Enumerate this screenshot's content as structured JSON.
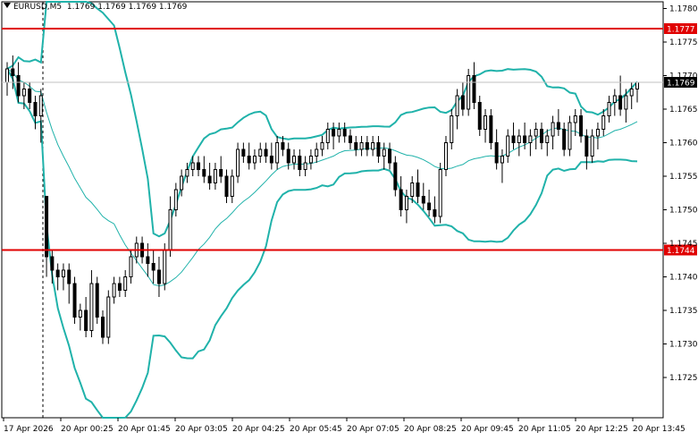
{
  "header": {
    "symbol_timeframe": "EURUSD,M5",
    "quote_values": "1.1769 1.1769 1.1769 1.1769"
  },
  "chart_data": {
    "type": "candlestick",
    "ylim": [
      1.1719,
      1.1781
    ],
    "y_ticks": [
      "1.1780",
      "1.1775",
      "1.1770",
      "1.1765",
      "1.1760",
      "1.1755",
      "1.1750",
      "1.1745",
      "1.1740",
      "1.1735",
      "1.1730",
      "1.1725"
    ],
    "x_tick_labels": [
      "17 Apr 2026",
      "20 Apr 00:25",
      "20 Apr 01:45",
      "20 Apr 03:05",
      "20 Apr 04:25",
      "20 Apr 05:45",
      "20 Apr 07:05",
      "20 Apr 08:25",
      "20 Apr 09:45",
      "20 Apr 11:05",
      "20 Apr 12:25",
      "20 Apr 13:45"
    ],
    "horizontal_lines": [
      {
        "price": 1.1777,
        "label": "1.1777",
        "color": "#e00000"
      },
      {
        "price": 1.1744,
        "label": "1.1744",
        "color": "#e00000"
      }
    ],
    "current_price": {
      "price": 1.1769,
      "label": "1.1769"
    },
    "colors": {
      "candle": "#000000",
      "bollinger": "#20b2aa",
      "level": "#e00000",
      "grid": "#c0c0c0"
    },
    "candles": [
      [
        1.1769,
        1.1772,
        1.1767,
        1.1771
      ],
      [
        1.1771,
        1.1773,
        1.1768,
        1.177
      ],
      [
        1.177,
        1.1772,
        1.1766,
        1.1767
      ],
      [
        1.1767,
        1.1769,
        1.1765,
        1.1768
      ],
      [
        1.1768,
        1.1769,
        1.1765,
        1.1766
      ],
      [
        1.1766,
        1.1767,
        1.1762,
        1.1764
      ],
      [
        1.1764,
        1.1768,
        1.176,
        1.1767
      ],
      [
        1.1752,
        1.1752,
        1.174,
        1.1743
      ],
      [
        1.1743,
        1.1744,
        1.1739,
        1.1741
      ],
      [
        1.1741,
        1.1742,
        1.1738,
        1.174
      ],
      [
        1.174,
        1.1742,
        1.1738,
        1.1741
      ],
      [
        1.1741,
        1.1742,
        1.1736,
        1.1739
      ],
      [
        1.1739,
        1.174,
        1.1733,
        1.1734
      ],
      [
        1.1734,
        1.1736,
        1.1732,
        1.1735
      ],
      [
        1.1735,
        1.1737,
        1.1731,
        1.1732
      ],
      [
        1.1732,
        1.1741,
        1.1731,
        1.1739
      ],
      [
        1.1739,
        1.174,
        1.1733,
        1.1734
      ],
      [
        1.1734,
        1.1735,
        1.173,
        1.1731
      ],
      [
        1.1731,
        1.1738,
        1.173,
        1.1737
      ],
      [
        1.1737,
        1.174,
        1.1736,
        1.1739
      ],
      [
        1.1739,
        1.174,
        1.1737,
        1.1738
      ],
      [
        1.1738,
        1.1741,
        1.1737,
        1.174
      ],
      [
        1.174,
        1.1744,
        1.1739,
        1.1743
      ],
      [
        1.1743,
        1.1746,
        1.1742,
        1.1745
      ],
      [
        1.1745,
        1.1746,
        1.1742,
        1.1743
      ],
      [
        1.1743,
        1.1745,
        1.174,
        1.1742
      ],
      [
        1.1742,
        1.1744,
        1.1739,
        1.1741
      ],
      [
        1.1741,
        1.1743,
        1.1737,
        1.1739
      ],
      [
        1.1739,
        1.1745,
        1.1738,
        1.1744
      ],
      [
        1.1744,
        1.1752,
        1.1743,
        1.175
      ],
      [
        1.175,
        1.1754,
        1.1749,
        1.1753
      ],
      [
        1.1753,
        1.1756,
        1.1752,
        1.1755
      ],
      [
        1.1755,
        1.1757,
        1.1754,
        1.1756
      ],
      [
        1.1756,
        1.1758,
        1.1755,
        1.1757
      ],
      [
        1.1757,
        1.1758,
        1.1755,
        1.1756
      ],
      [
        1.1756,
        1.1758,
        1.1754,
        1.1755
      ],
      [
        1.1755,
        1.1757,
        1.1753,
        1.1754
      ],
      [
        1.1754,
        1.1757,
        1.1753,
        1.1756
      ],
      [
        1.1756,
        1.1758,
        1.1754,
        1.1755
      ],
      [
        1.1755,
        1.1756,
        1.1751,
        1.1752
      ],
      [
        1.1752,
        1.1756,
        1.1751,
        1.1755
      ],
      [
        1.1755,
        1.176,
        1.1754,
        1.1759
      ],
      [
        1.1759,
        1.176,
        1.1757,
        1.1758
      ],
      [
        1.1758,
        1.176,
        1.1756,
        1.1757
      ],
      [
        1.1757,
        1.1759,
        1.1756,
        1.1758
      ],
      [
        1.1758,
        1.176,
        1.1757,
        1.1759
      ],
      [
        1.1759,
        1.176,
        1.1757,
        1.1758
      ],
      [
        1.1758,
        1.176,
        1.1756,
        1.1757
      ],
      [
        1.1757,
        1.1761,
        1.1756,
        1.176
      ],
      [
        1.176,
        1.1761,
        1.1758,
        1.1759
      ],
      [
        1.1759,
        1.176,
        1.1756,
        1.1757
      ],
      [
        1.1757,
        1.1759,
        1.1756,
        1.1758
      ],
      [
        1.1758,
        1.1759,
        1.1755,
        1.1756
      ],
      [
        1.1756,
        1.1758,
        1.1755,
        1.1757
      ],
      [
        1.1757,
        1.1759,
        1.1756,
        1.1758
      ],
      [
        1.1758,
        1.176,
        1.1757,
        1.1759
      ],
      [
        1.1759,
        1.1761,
        1.1758,
        1.176
      ],
      [
        1.176,
        1.1763,
        1.1759,
        1.1762
      ],
      [
        1.1762,
        1.1763,
        1.1759,
        1.1761
      ],
      [
        1.1761,
        1.1763,
        1.176,
        1.1762
      ],
      [
        1.1762,
        1.1763,
        1.176,
        1.1761
      ],
      [
        1.1761,
        1.1762,
        1.1759,
        1.176
      ],
      [
        1.176,
        1.1761,
        1.1758,
        1.1759
      ],
      [
        1.1759,
        1.1761,
        1.1758,
        1.176
      ],
      [
        1.176,
        1.1761,
        1.1758,
        1.1759
      ],
      [
        1.1759,
        1.1761,
        1.1758,
        1.176
      ],
      [
        1.176,
        1.1761,
        1.1757,
        1.1758
      ],
      [
        1.1758,
        1.176,
        1.1756,
        1.1759
      ],
      [
        1.1759,
        1.176,
        1.1756,
        1.1757
      ],
      [
        1.1757,
        1.1758,
        1.1752,
        1.1753
      ],
      [
        1.1753,
        1.1755,
        1.1749,
        1.175
      ],
      [
        1.175,
        1.1753,
        1.1748,
        1.1752
      ],
      [
        1.1752,
        1.1755,
        1.1751,
        1.1754
      ],
      [
        1.1754,
        1.1756,
        1.1751,
        1.1752
      ],
      [
        1.1752,
        1.1754,
        1.175,
        1.1751
      ],
      [
        1.1751,
        1.1753,
        1.1749,
        1.175
      ],
      [
        1.175,
        1.1752,
        1.1748,
        1.1749
      ],
      [
        1.1749,
        1.1757,
        1.1748,
        1.1756
      ],
      [
        1.1756,
        1.1761,
        1.1755,
        1.176
      ],
      [
        1.176,
        1.1765,
        1.1759,
        1.1764
      ],
      [
        1.1764,
        1.1768,
        1.1762,
        1.1767
      ],
      [
        1.1767,
        1.1769,
        1.1764,
        1.1765
      ],
      [
        1.1765,
        1.1771,
        1.1764,
        1.177
      ],
      [
        1.177,
        1.1772,
        1.1765,
        1.1766
      ],
      [
        1.1766,
        1.1767,
        1.1761,
        1.1762
      ],
      [
        1.1762,
        1.1765,
        1.176,
        1.1764
      ],
      [
        1.1764,
        1.1765,
        1.1759,
        1.176
      ],
      [
        1.176,
        1.1762,
        1.1756,
        1.1757
      ],
      [
        1.1757,
        1.1759,
        1.1754,
        1.1758
      ],
      [
        1.1758,
        1.1762,
        1.1757,
        1.1761
      ],
      [
        1.1761,
        1.1763,
        1.1759,
        1.176
      ],
      [
        1.176,
        1.1762,
        1.1758,
        1.1761
      ],
      [
        1.1761,
        1.1763,
        1.1759,
        1.176
      ],
      [
        1.176,
        1.1762,
        1.1758,
        1.1761
      ],
      [
        1.1761,
        1.1763,
        1.1759,
        1.1762
      ],
      [
        1.1762,
        1.1763,
        1.1759,
        1.176
      ],
      [
        1.176,
        1.1762,
        1.1758,
        1.1761
      ],
      [
        1.1761,
        1.1764,
        1.1759,
        1.1763
      ],
      [
        1.1763,
        1.1765,
        1.1761,
        1.1762
      ],
      [
        1.1762,
        1.1763,
        1.1758,
        1.1759
      ],
      [
        1.1759,
        1.1764,
        1.1758,
        1.1763
      ],
      [
        1.1763,
        1.1765,
        1.1761,
        1.1764
      ],
      [
        1.1764,
        1.1765,
        1.176,
        1.1761
      ],
      [
        1.1761,
        1.1762,
        1.1756,
        1.1758
      ],
      [
        1.1758,
        1.1762,
        1.1757,
        1.1761
      ],
      [
        1.1761,
        1.1763,
        1.1759,
        1.1762
      ],
      [
        1.1762,
        1.1765,
        1.1761,
        1.1764
      ],
      [
        1.1764,
        1.1767,
        1.1763,
        1.1766
      ],
      [
        1.1766,
        1.1768,
        1.1764,
        1.1767
      ],
      [
        1.1767,
        1.177,
        1.1764,
        1.1765
      ],
      [
        1.1765,
        1.1768,
        1.1763,
        1.1767
      ],
      [
        1.1767,
        1.1769,
        1.1765,
        1.1768
      ],
      [
        1.1768,
        1.1769,
        1.1766,
        1.1769
      ]
    ]
  }
}
